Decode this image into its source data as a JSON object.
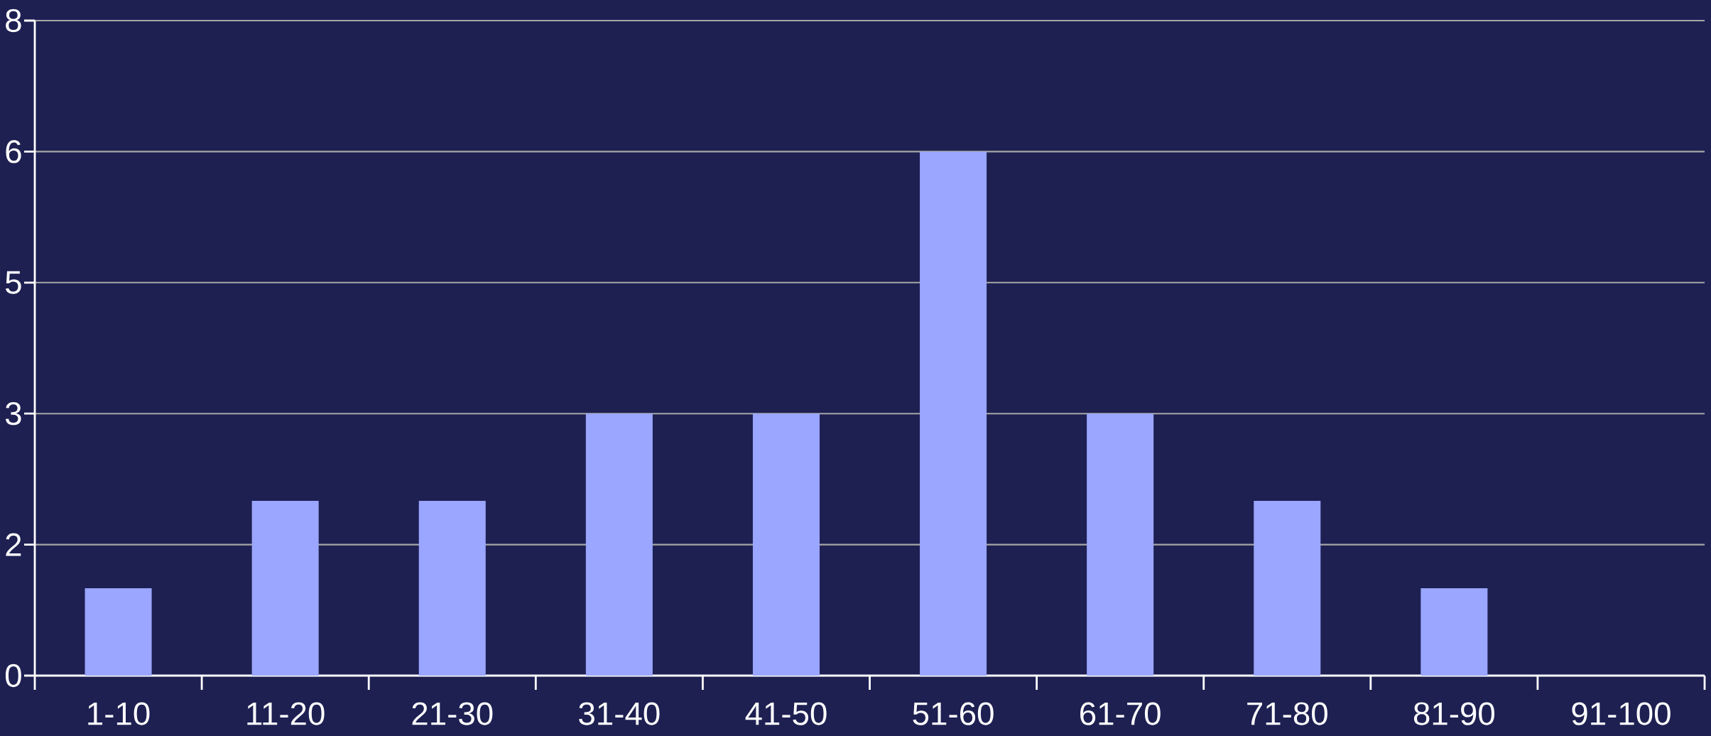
{
  "chart_data": {
    "type": "bar",
    "categories": [
      "1-10",
      "11-20",
      "21-30",
      "31-40",
      "41-50",
      "51-60",
      "61-70",
      "71-80",
      "81-90",
      "91-100"
    ],
    "values": [
      1,
      2,
      2,
      3,
      3,
      6,
      3,
      2,
      1,
      0
    ],
    "color": "#9aa6ff",
    "ylim": [
      0,
      7.5
    ],
    "yticks": [
      0,
      {
        "value": 1.5,
        "label": "2"
      },
      3,
      {
        "value": 4.5,
        "label": "5"
      },
      6,
      {
        "value": 7.5,
        "label": "8"
      }
    ],
    "grid": "y"
  }
}
